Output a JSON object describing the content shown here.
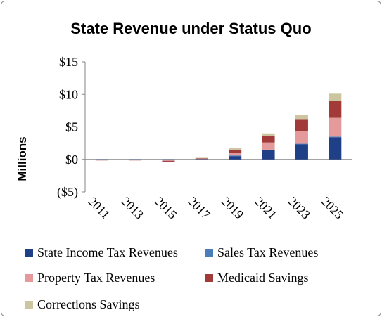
{
  "chart_data": {
    "type": "bar",
    "stacked": true,
    "title": "State Revenue under Status Quo",
    "xlabel": "",
    "ylabel": "Millions",
    "ylim": [
      -5,
      15
    ],
    "yticks": [
      {
        "value": 15,
        "label": "$15"
      },
      {
        "value": 10,
        "label": "$10"
      },
      {
        "value": 5,
        "label": "$5"
      },
      {
        "value": 0,
        "label": "$0"
      },
      {
        "value": -5,
        "label": "($5)"
      }
    ],
    "categories": [
      "2011",
      "2013",
      "2015",
      "2017",
      "2019",
      "2021",
      "2023",
      "2025"
    ],
    "series": [
      {
        "name": "State Income Tax Revenues",
        "color": "#1f3f86",
        "values": [
          -0.05,
          -0.05,
          -0.1,
          0.1,
          0.5,
          1.4,
          2.3,
          3.4
        ]
      },
      {
        "name": "Sales Tax Revenues",
        "color": "#4a7ebb",
        "values": [
          0,
          0,
          -0.05,
          0,
          0.1,
          0.1,
          0.1,
          0.1
        ]
      },
      {
        "name": "Property Tax Revenues",
        "color": "#e49a9a",
        "values": [
          0,
          0,
          -0.1,
          0.05,
          0.4,
          1.1,
          1.9,
          2.9
        ]
      },
      {
        "name": "Medicaid Savings",
        "color": "#a33a3a",
        "values": [
          -0.05,
          -0.05,
          -0.15,
          0.05,
          0.5,
          1.0,
          1.8,
          2.6
        ]
      },
      {
        "name": "Corrections Savings",
        "color": "#cdc4a0",
        "values": [
          0,
          0,
          0,
          0.05,
          0.3,
          0.4,
          0.7,
          1.1
        ]
      }
    ],
    "grid": false,
    "legend_position": "bottom"
  }
}
